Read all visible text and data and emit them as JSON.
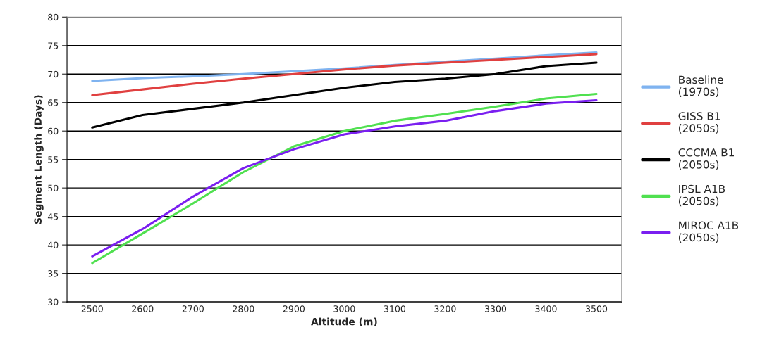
{
  "chart_data": {
    "type": "line",
    "xlabel": "Altitude (m)",
    "ylabel": "Segment Length (Days)",
    "categories": [
      "2500",
      "2600",
      "2700",
      "2800",
      "2900",
      "3000",
      "3100",
      "3200",
      "3300",
      "3400",
      "3500"
    ],
    "series": [
      {
        "name": "Baseline\n(1970s)",
        "color": "#7fb3f0",
        "values": [
          68.8,
          69.3,
          69.6,
          70.0,
          70.5,
          71.0,
          71.6,
          72.2,
          72.7,
          73.3,
          73.8
        ]
      },
      {
        "name": "GISS B1\n(2050s)",
        "color": "#e04040",
        "values": [
          66.3,
          67.3,
          68.3,
          69.2,
          70.0,
          70.8,
          71.5,
          72.0,
          72.5,
          73.0,
          73.5
        ]
      },
      {
        "name": "CCCMA B1\n(2050s)",
        "color": "#000000",
        "values": [
          60.6,
          62.8,
          63.9,
          65.0,
          66.3,
          67.6,
          68.6,
          69.2,
          70.0,
          71.4,
          72.0
        ]
      },
      {
        "name": "IPSL A1B\n(2050s)",
        "color": "#50e050",
        "values": [
          36.8,
          42.0,
          47.3,
          52.8,
          57.3,
          60.0,
          61.8,
          63.0,
          64.3,
          65.7,
          66.5
        ]
      },
      {
        "name": "MIROC A1B\n(2050s)",
        "color": "#7a1ff0",
        "values": [
          38.0,
          42.8,
          48.5,
          53.5,
          56.8,
          59.4,
          60.8,
          61.8,
          63.5,
          64.8,
          65.4
        ]
      }
    ],
    "ylim": [
      30,
      80
    ],
    "yticks": [
      30,
      35,
      40,
      45,
      50,
      55,
      60,
      65,
      70,
      75,
      80
    ],
    "grid": "y",
    "legend": "right",
    "marker": "none",
    "line_style": "solid"
  }
}
